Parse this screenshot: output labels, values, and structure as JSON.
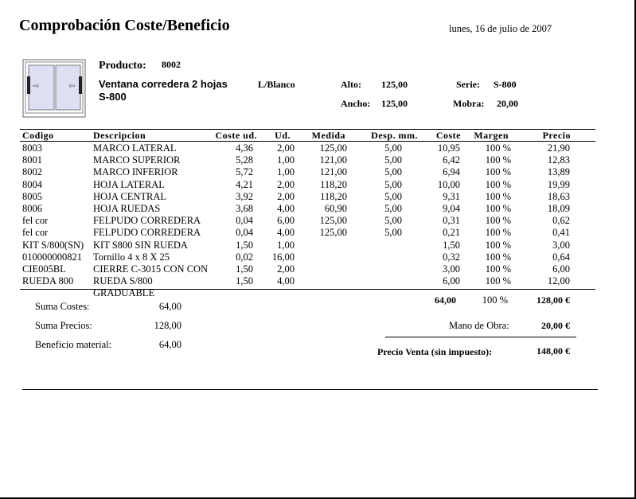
{
  "report": {
    "title": "Comprobación Coste/Beneficio",
    "date": "lunes, 16 de julio de 2007"
  },
  "product": {
    "label": "Producto:",
    "code": "8002",
    "description": "Ventana corredera 2 hojas",
    "series_line": "S-800",
    "color": "L/Blanco",
    "alto_label": "Alto:",
    "alto": "125,00",
    "ancho_label": "Ancho:",
    "ancho": "125,00",
    "serie_label": "Serie:",
    "serie": "S-800",
    "mobra_label": "Mobra:",
    "mobra": "20,00"
  },
  "table": {
    "columns": [
      "Codigo",
      "Descripcion",
      "Coste ud.",
      "Ud.",
      "Medida",
      "Desp. mm.",
      "Coste",
      "Margen",
      "Precio"
    ],
    "rows": [
      [
        "8003",
        "MARCO LATERAL",
        "4,36",
        "2,00",
        "125,00",
        "5,00",
        "10,95",
        "100 %",
        "21,90"
      ],
      [
        "8001",
        "MARCO SUPERIOR",
        "5,28",
        "1,00",
        "121,00",
        "5,00",
        "6,42",
        "100 %",
        "12,83"
      ],
      [
        "8002",
        "MARCO INFERIOR",
        "5,72",
        "1,00",
        "121,00",
        "5,00",
        "6,94",
        "100 %",
        "13,89"
      ],
      [
        "8004",
        "HOJA LATERAL",
        "4,21",
        "2,00",
        "118,20",
        "5,00",
        "10,00",
        "100 %",
        "19,99"
      ],
      [
        "8005",
        "HOJA CENTRAL",
        "3,92",
        "2,00",
        "118,20",
        "5,00",
        "9,31",
        "100 %",
        "18,63"
      ],
      [
        "8006",
        "HOJA RUEDAS",
        "3,68",
        "4,00",
        "60,90",
        "5,00",
        "9,04",
        "100 %",
        "18,09"
      ],
      [
        "fel cor",
        "FELPUDO CORREDERA",
        "0,04",
        "6,00",
        "125,00",
        "5,00",
        "0,31",
        "100 %",
        "0,62"
      ],
      [
        "fel cor",
        "FELPUDO CORREDERA",
        "0,04",
        "4,00",
        "125,00",
        "5,00",
        "0,21",
        "100 %",
        "0,41"
      ],
      [
        "KIT S/800(SN)",
        "KIT S800 SIN RUEDA",
        "1,50",
        "1,00",
        "",
        "",
        "1,50",
        "100 %",
        "3,00"
      ],
      [
        "010000000821",
        "Tornillo 4 x 8 X 25",
        "0,02",
        "16,00",
        "",
        "",
        "0,32",
        "100 %",
        "0,64"
      ],
      [
        "CIE005BL",
        "CIERRE C-3015 CON CON",
        "1,50",
        "2,00",
        "",
        "",
        "3,00",
        "100 %",
        "6,00"
      ],
      [
        "RUEDA 800",
        "RUEDA S/800 GRADUABLE",
        "1,50",
        "4,00",
        "",
        "",
        "6,00",
        "100 %",
        "12,00"
      ]
    ],
    "totals": {
      "coste": "64,00",
      "margen": "100 %",
      "precio": "128,00 €"
    }
  },
  "summary": {
    "suma_costes_label": "Suma  Costes:",
    "suma_costes": "64,00",
    "suma_precios_label": "Suma Precios:",
    "suma_precios": "128,00",
    "beneficio_label": "Beneficio material:",
    "beneficio": "64,00",
    "mano_obra_label": "Mano de Obra:",
    "mano_obra": "20,00 €",
    "precio_venta_label": "Precio Venta (sin impuesto):",
    "precio_venta": "148,00 €"
  }
}
